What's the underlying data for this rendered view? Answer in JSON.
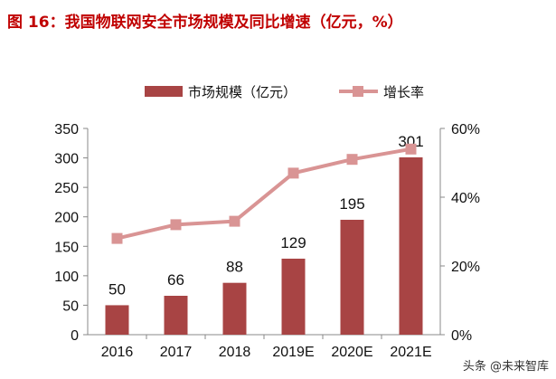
{
  "title": "图 16：我国物联网安全市场规模及同比增速（亿元，%）",
  "watermark": "头条 @未来智库",
  "colors": {
    "bar": "#a84444",
    "line": "#d99494",
    "title": "#c00000"
  },
  "chart_data": {
    "type": "bar+line",
    "categories": [
      "2016",
      "2017",
      "2018",
      "2019E",
      "2020E",
      "2021E"
    ],
    "series": [
      {
        "name": "市场规模（亿元）",
        "type": "bar",
        "axis": "left",
        "values": [
          50,
          66,
          88,
          129,
          195,
          301
        ],
        "labels": [
          "50",
          "66",
          "88",
          "129",
          "195",
          "301"
        ]
      },
      {
        "name": "增长率",
        "type": "line",
        "axis": "right",
        "values": [
          28,
          32,
          33,
          47,
          51,
          54
        ]
      }
    ],
    "left_axis": {
      "range": [
        0,
        350
      ],
      "ticks": [
        "0",
        "50",
        "100",
        "150",
        "200",
        "250",
        "300",
        "350"
      ]
    },
    "right_axis": {
      "range": [
        0,
        60
      ],
      "ticks": [
        "0%",
        "20%",
        "40%",
        "60%"
      ]
    },
    "legend_position": "top",
    "grid": false
  }
}
